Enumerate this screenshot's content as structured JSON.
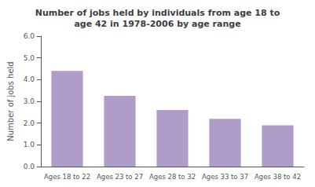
{
  "chart_data": {
    "type": "bar",
    "title": "Number of jobs held by individuals from age 18 to\nage 42 in 1978-2006 by age range",
    "ylabel": "Number of jobs held",
    "categories": [
      "Ages 18 to 22",
      "Ages 23 to 27",
      "Ages 28 to 32",
      "Ages 33 to 37",
      "Ages 38 to 42"
    ],
    "values": [
      4.4,
      3.25,
      2.6,
      2.2,
      1.9
    ],
    "color": "#b09cc8",
    "ylim": [
      0,
      6.0
    ],
    "yticks": [
      {
        "value": 0,
        "label": "0.0"
      },
      {
        "value": 1,
        "label": "1.0"
      },
      {
        "value": 2,
        "label": "2.0"
      },
      {
        "value": 3,
        "label": "3.0"
      },
      {
        "value": 4,
        "label": "4.0"
      },
      {
        "value": 5,
        "label": "5.0"
      },
      {
        "value": 6,
        "label": "6.0"
      }
    ],
    "grid": false
  }
}
